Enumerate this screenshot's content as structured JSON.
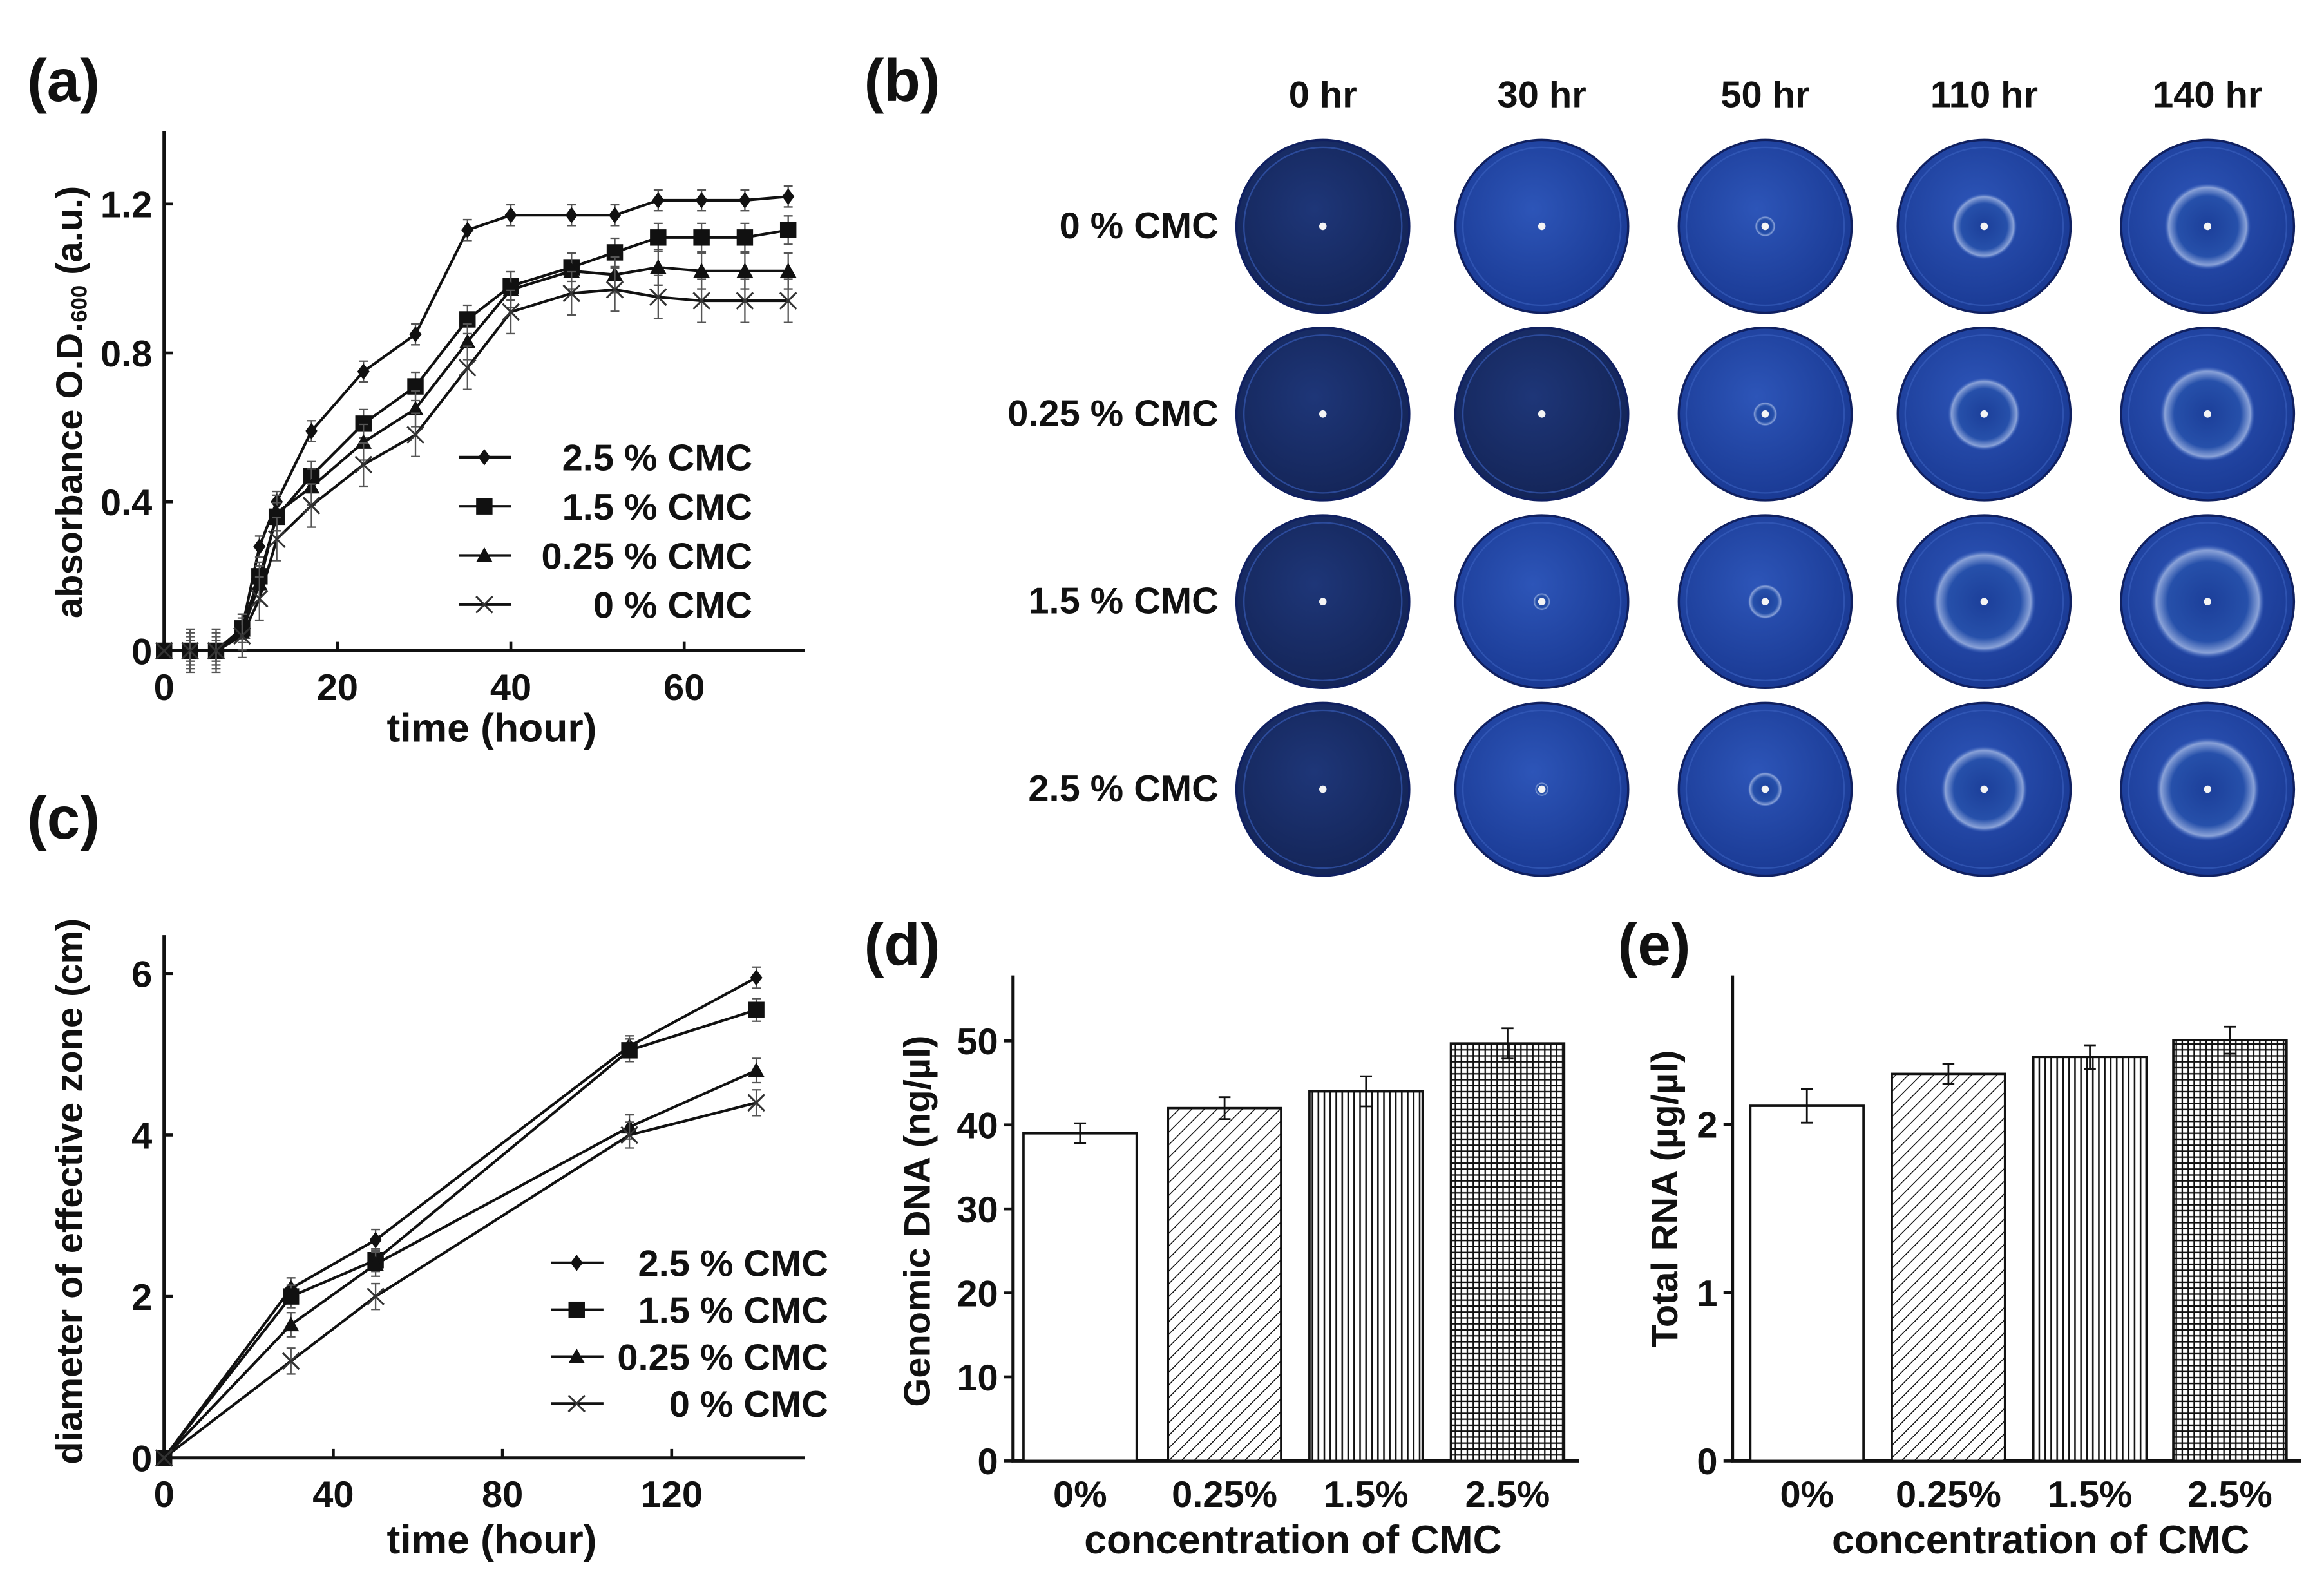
{
  "panel_labels": {
    "a": "(a)",
    "b": "(b)",
    "c": "(c)",
    "d": "(d)",
    "e": "(e)"
  },
  "plates": {
    "columns": [
      "0 hr",
      "30 hr",
      "50 hr",
      "110 hr",
      "140 hr"
    ],
    "rows": [
      "0 % CMC",
      "0.25 % CMC",
      "1.5 % CMC",
      "2.5 % CMC"
    ],
    "plate_color": "#1e3a8f"
  },
  "chart_data": [
    {
      "id": "a",
      "type": "line",
      "xlabel": "time (hour)",
      "ylabel_main": "absorbance O.D.",
      "ylabel_sub": "600",
      "ylabel_end": " (a.u.)",
      "xlim": [
        0,
        74
      ],
      "ylim": [
        0,
        1.4
      ],
      "xticks": [
        "0",
        "20",
        "40",
        "60"
      ],
      "xtick_values": [
        0,
        20,
        40,
        60
      ],
      "yticks": [
        "0",
        "0.4",
        "0.8",
        "1.2"
      ],
      "ytick_values": [
        0,
        0.4,
        0.8,
        1.2
      ],
      "legend": "bottom-right",
      "x": [
        0,
        3,
        6,
        9,
        11,
        13,
        17,
        23,
        29,
        35,
        40,
        47,
        52,
        57,
        62,
        67,
        72
      ],
      "series": [
        {
          "name": "2.5 % CMC",
          "marker": "diamond",
          "values": [
            0,
            0,
            0,
            0.06,
            0.28,
            0.4,
            0.59,
            0.75,
            0.85,
            1.13,
            1.17,
            1.17,
            1.17,
            1.21,
            1.21,
            1.21,
            1.22
          ]
        },
        {
          "name": "1.5 % CMC",
          "marker": "square",
          "values": [
            0,
            0,
            0,
            0.06,
            0.2,
            0.36,
            0.47,
            0.61,
            0.71,
            0.89,
            0.98,
            1.03,
            1.07,
            1.11,
            1.11,
            1.11,
            1.13
          ]
        },
        {
          "name": "0.25 % CMC",
          "marker": "triangle",
          "values": [
            0,
            0,
            0,
            0.05,
            0.18,
            0.37,
            0.44,
            0.56,
            0.65,
            0.83,
            0.97,
            1.02,
            1.01,
            1.03,
            1.02,
            1.02,
            1.02
          ]
        },
        {
          "name": "0 % CMC",
          "marker": "x",
          "values": [
            0,
            0,
            0,
            0.04,
            0.14,
            0.3,
            0.39,
            0.5,
            0.58,
            0.76,
            0.91,
            0.96,
            0.97,
            0.95,
            0.94,
            0.94,
            0.94
          ]
        }
      ]
    },
    {
      "id": "c",
      "type": "line",
      "xlabel": "time (hour)",
      "ylabel": "diameter of effective zone (cm)",
      "xlim": [
        0,
        150
      ],
      "ylim": [
        0,
        6.5
      ],
      "xticks": [
        "0",
        "40",
        "80",
        "120"
      ],
      "xtick_values": [
        0,
        40,
        80,
        120
      ],
      "yticks": [
        "0",
        "2",
        "4",
        "6"
      ],
      "ytick_values": [
        0,
        2,
        4,
        6
      ],
      "legend": "bottom-right",
      "x": [
        0,
        30,
        50,
        110,
        140
      ],
      "series": [
        {
          "name": "2.5 % CMC",
          "marker": "diamond",
          "values": [
            0,
            2.1,
            2.7,
            5.1,
            5.95
          ]
        },
        {
          "name": "1.5 % CMC",
          "marker": "square",
          "values": [
            0,
            2.0,
            2.45,
            5.05,
            5.55
          ]
        },
        {
          "name": "0.25 % CMC",
          "marker": "triangle",
          "values": [
            0,
            1.65,
            2.4,
            4.1,
            4.8
          ]
        },
        {
          "name": "0 % CMC",
          "marker": "x",
          "values": [
            0,
            1.2,
            2.0,
            4.0,
            4.4
          ]
        }
      ]
    },
    {
      "id": "d",
      "type": "bar",
      "xlabel": "concentration of CMC",
      "ylabel": "Genomic DNA (ng/µl)",
      "categories": [
        "0%",
        "0.25%",
        "1.5%",
        "2.5%"
      ],
      "values": [
        39,
        42,
        44,
        49.7
      ],
      "errors": [
        1.2,
        1.3,
        1.8,
        1.8
      ],
      "patterns": [
        "none",
        "diagonal",
        "vertical",
        "grid"
      ],
      "ylim": [
        0,
        58
      ],
      "yticks": [
        "0",
        "10",
        "20",
        "30",
        "40",
        "50"
      ],
      "ytick_values": [
        0,
        10,
        20,
        30,
        40,
        50
      ]
    },
    {
      "id": "e",
      "type": "bar",
      "xlabel": "concentration of CMC",
      "ylabel": "Total RNA (µg/µl)",
      "categories": [
        "0%",
        "0.25%",
        "1.5%",
        "2.5%"
      ],
      "values": [
        2.11,
        2.3,
        2.4,
        2.5
      ],
      "errors": [
        0.1,
        0.06,
        0.07,
        0.08
      ],
      "patterns": [
        "none",
        "diagonal",
        "vertical",
        "grid"
      ],
      "ylim": [
        0,
        2.9
      ],
      "yticks": [
        "0",
        "1",
        "2"
      ],
      "ytick_values": [
        0,
        1,
        2
      ]
    }
  ]
}
